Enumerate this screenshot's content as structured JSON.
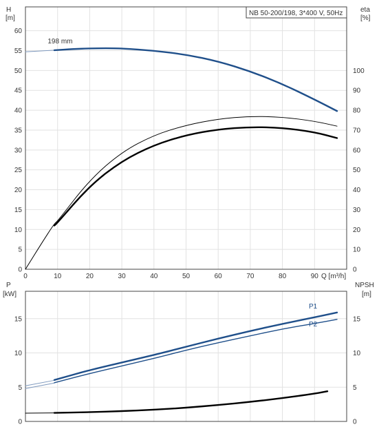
{
  "chart_data": [
    {
      "type": "line",
      "title": "NB 50-200/198, 3*400 V, 50Hz",
      "xlabel": "Q [m³/h]",
      "xlim": [
        0,
        100
      ],
      "xticks": [
        0,
        10,
        20,
        30,
        40,
        50,
        60,
        70,
        80,
        90
      ],
      "y_left": {
        "label_top": "H",
        "label_unit": "[m]",
        "lim": [
          0,
          66
        ],
        "ticks": [
          0,
          5,
          10,
          15,
          20,
          25,
          30,
          35,
          40,
          45,
          50,
          55,
          60
        ]
      },
      "y_right": {
        "label_top": "eta",
        "label_unit": "[%]",
        "lim": [
          0,
          132
        ],
        "ticks": [
          0,
          10,
          20,
          30,
          40,
          50,
          60,
          70,
          80,
          90,
          100
        ]
      },
      "annotations": [
        {
          "text": "198 mm",
          "x": 9.5,
          "y": 56.8
        }
      ],
      "grid": true,
      "series": [
        {
          "axis": "left",
          "style": "thin",
          "color": "#7d98bd",
          "x": [
            0,
            9
          ],
          "y": [
            54.7,
            55.1
          ]
        },
        {
          "axis": "left",
          "style": "thick",
          "color": "#1f4f8a",
          "x": [
            9,
            15,
            20,
            25,
            30,
            40,
            50,
            60,
            70,
            80,
            90,
            97
          ],
          "y": [
            55.1,
            55.4,
            55.55,
            55.6,
            55.55,
            55.0,
            54.0,
            52.3,
            49.8,
            46.6,
            42.7,
            39.8
          ]
        },
        {
          "axis": "right",
          "style": "thin",
          "color": "#000000",
          "x": [
            0,
            5,
            9,
            10,
            20,
            30,
            40,
            50,
            60,
            70,
            80,
            90,
            97
          ],
          "y": [
            0,
            13,
            23,
            24.2,
            45,
            59,
            67.5,
            72.5,
            75.6,
            77,
            76.6,
            74.5,
            72
          ]
        },
        {
          "axis": "right",
          "style": "thick",
          "color": "#000000",
          "x": [
            9,
            10,
            20,
            30,
            40,
            50,
            60,
            70,
            80,
            90,
            97
          ],
          "y": [
            22,
            23.5,
            42,
            54.5,
            62.5,
            67.5,
            70.4,
            71.6,
            71.2,
            69,
            66
          ]
        }
      ]
    },
    {
      "type": "line",
      "title": "",
      "xlabel": "",
      "xlim": [
        0,
        100
      ],
      "xticks": [
        0,
        10,
        20,
        30,
        40,
        50,
        60,
        70,
        80,
        90
      ],
      "y_left": {
        "label_top": "P",
        "label_unit": "[kW]",
        "lim": [
          0,
          19
        ],
        "ticks": [
          0,
          5,
          10,
          15
        ]
      },
      "y_right": {
        "label_top": "NPSH",
        "label_unit": "[m]",
        "lim": [
          0,
          19
        ],
        "ticks": [
          0,
          5,
          10,
          15
        ]
      },
      "grid": true,
      "legend": [
        "P1",
        "P2"
      ],
      "series": [
        {
          "name": "P1",
          "axis": "left",
          "style": "thin",
          "color": "#7d98bd",
          "x": [
            0,
            9
          ],
          "y": [
            5.2,
            6.0
          ]
        },
        {
          "name": "P1",
          "axis": "left",
          "style": "thick",
          "color": "#1f4f8a",
          "x": [
            9,
            20,
            30,
            40,
            50,
            60,
            70,
            80,
            90,
            97
          ],
          "y": [
            6.05,
            7.5,
            8.6,
            9.7,
            10.9,
            12.1,
            13.2,
            14.25,
            15.2,
            15.9
          ]
        },
        {
          "name": "P2",
          "axis": "left",
          "style": "thin",
          "color": "#7d98bd",
          "x": [
            0,
            9
          ],
          "y": [
            4.8,
            5.6
          ]
        },
        {
          "name": "P2",
          "axis": "left",
          "style": "medium",
          "color": "#1f4f8a",
          "x": [
            9,
            20,
            30,
            40,
            50,
            60,
            70,
            80,
            90,
            97
          ],
          "y": [
            5.65,
            7.0,
            8.1,
            9.2,
            10.4,
            11.5,
            12.5,
            13.5,
            14.3,
            14.9
          ]
        },
        {
          "name": "NPSH",
          "axis": "right",
          "style": "thin",
          "color": "#000000",
          "x": [
            0,
            9
          ],
          "y": [
            1.2,
            1.25
          ]
        },
        {
          "name": "NPSH",
          "axis": "right",
          "style": "thick",
          "color": "#000000",
          "x": [
            9,
            20,
            30,
            40,
            50,
            60,
            70,
            80,
            90,
            94
          ],
          "y": [
            1.25,
            1.35,
            1.5,
            1.7,
            2.0,
            2.4,
            2.85,
            3.4,
            4.05,
            4.4
          ]
        }
      ]
    }
  ]
}
